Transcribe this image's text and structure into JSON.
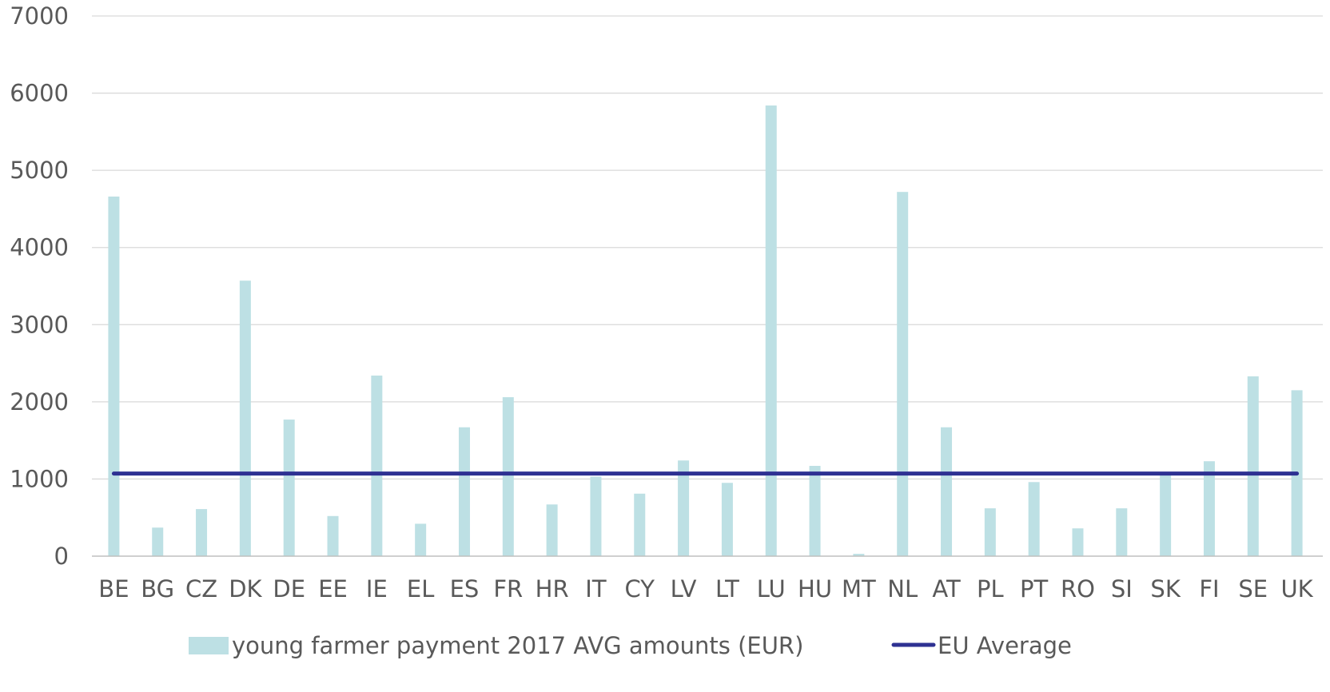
{
  "chart_data": {
    "type": "bar",
    "title": "",
    "xlabel": "",
    "ylabel": "",
    "categories": [
      "BE",
      "BG",
      "CZ",
      "DK",
      "DE",
      "EE",
      "IE",
      "EL",
      "ES",
      "FR",
      "HR",
      "IT",
      "CY",
      "LV",
      "LT",
      "LU",
      "HU",
      "MT",
      "NL",
      "AT",
      "PL",
      "PT",
      "RO",
      "SI",
      "SK",
      "FI",
      "SE",
      "UK"
    ],
    "series": [
      {
        "name": "young farmer payment 2017 AVG amounts (EUR)",
        "kind": "bar",
        "color": "#bde0e4",
        "values": [
          4660,
          370,
          610,
          3570,
          1770,
          520,
          2340,
          420,
          1670,
          2060,
          670,
          1030,
          810,
          1240,
          950,
          5840,
          1170,
          30,
          4720,
          1670,
          620,
          960,
          360,
          620,
          1080,
          1230,
          2330,
          2150
        ]
      },
      {
        "name": "EU Average",
        "kind": "line",
        "color": "#2e3192",
        "values": [
          1070,
          1070,
          1070,
          1070,
          1070,
          1070,
          1070,
          1070,
          1070,
          1070,
          1070,
          1070,
          1070,
          1070,
          1070,
          1070,
          1070,
          1070,
          1070,
          1070,
          1070,
          1070,
          1070,
          1070,
          1070,
          1070,
          1070,
          1070
        ]
      }
    ],
    "ylim": [
      0,
      7000
    ],
    "yticks": [
      "0",
      "1000",
      "2000",
      "3000",
      "4000",
      "5000",
      "6000",
      "7000"
    ],
    "grid": true,
    "legend_position": "bottom",
    "gridline_color": "#d9d9d9",
    "axis_color": "#bfbfbf"
  }
}
